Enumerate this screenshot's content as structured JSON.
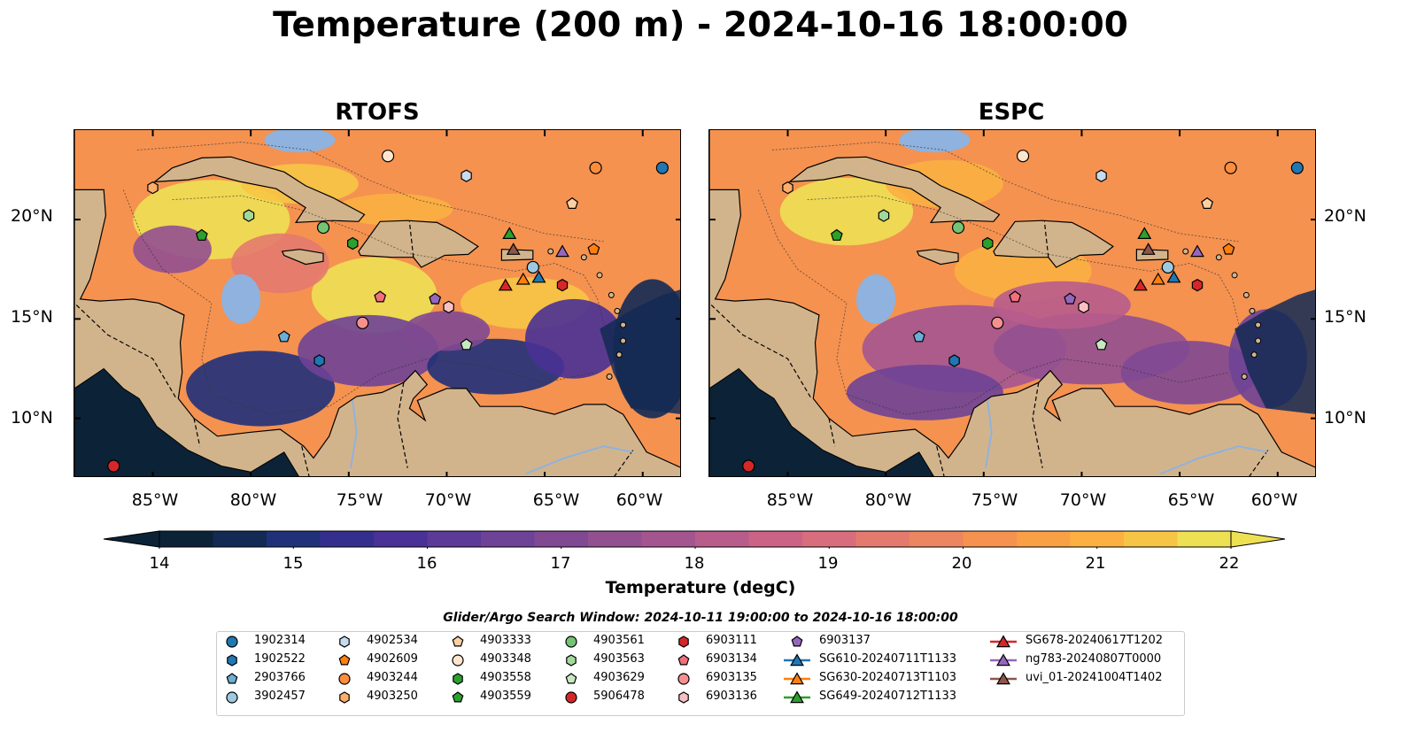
{
  "title": "Temperature (200 m) - 2024-10-16 18:00:00",
  "panels": [
    {
      "title": "RTOFS"
    },
    {
      "title": "ESPC"
    }
  ],
  "axes": {
    "lon_ticks": [
      "85°W",
      "80°W",
      "75°W",
      "70°W",
      "65°W",
      "60°W"
    ],
    "lat_ticks": [
      "20°N",
      "15°N",
      "10°N"
    ]
  },
  "colorbar": {
    "label": "Temperature (degC)",
    "ticks": [
      "14",
      "15",
      "16",
      "17",
      "18",
      "19",
      "20",
      "21",
      "22"
    ],
    "colors": [
      "#0c2236",
      "#132a55",
      "#20317a",
      "#342f8c",
      "#493195",
      "#5c3a97",
      "#6e4296",
      "#804992",
      "#925090",
      "#a45590",
      "#b85c8c",
      "#ca6385",
      "#d86d7d",
      "#e47a6e",
      "#ec8660",
      "#f59250",
      "#f9a046",
      "#fbb041",
      "#f7c545",
      "#eee053"
    ]
  },
  "search_window": "Glider/Argo Search Window: 2024-10-11 19:00:00 to 2024-10-16 18:00:00",
  "chart_data": {
    "type": "heatmap",
    "title": "Temperature (200 m) - 2024-10-16 18:00:00",
    "variable": "Temperature (degC)",
    "color_range": [
      14,
      22
    ],
    "lon_range": [
      -89,
      -58
    ],
    "lat_range": [
      7,
      24.5
    ],
    "panels": [
      "RTOFS",
      "ESPC"
    ],
    "floats": [
      {
        "id": "1902314",
        "marker": "circle",
        "color": "#1f77b4",
        "lon": -59.0,
        "lat": 22.6
      },
      {
        "id": "1902522",
        "marker": "hexagon",
        "color": "#1f77b4",
        "lon": -76.5,
        "lat": 12.9
      },
      {
        "id": "2903766",
        "marker": "pentagon",
        "color": "#6baed6",
        "lon": -78.3,
        "lat": 14.1
      },
      {
        "id": "3902457",
        "marker": "circle",
        "color": "#9ecae1",
        "lon": -65.6,
        "lat": 17.6
      },
      {
        "id": "4902534",
        "marker": "hexagon",
        "color": "#c6dbef",
        "lon": -69.0,
        "lat": 22.2
      },
      {
        "id": "4902609",
        "marker": "pentagon",
        "color": "#ff7f0e",
        "lon": -62.5,
        "lat": 18.5
      },
      {
        "id": "4903244",
        "marker": "circle",
        "color": "#fd8d3c",
        "lon": -62.4,
        "lat": 22.6
      },
      {
        "id": "4903250",
        "marker": "hexagon",
        "color": "#fdae6b",
        "lon": -85.0,
        "lat": 21.6
      },
      {
        "id": "4903333",
        "marker": "pentagon",
        "color": "#fdd0a2",
        "lon": -63.6,
        "lat": 20.8
      },
      {
        "id": "4903348",
        "marker": "circle",
        "color": "#fee6ce",
        "lon": -73.0,
        "lat": 23.2
      },
      {
        "id": "4903558",
        "marker": "hexagon",
        "color": "#2ca02c",
        "lon": -74.8,
        "lat": 18.8
      },
      {
        "id": "4903559",
        "marker": "pentagon",
        "color": "#2ca02c",
        "lon": -82.5,
        "lat": 19.2
      },
      {
        "id": "4903561",
        "marker": "circle",
        "color": "#74c476",
        "lon": -76.3,
        "lat": 19.6
      },
      {
        "id": "4903563",
        "marker": "hexagon",
        "color": "#a1d99b",
        "lon": -80.1,
        "lat": 20.2
      },
      {
        "id": "4903629",
        "marker": "pentagon",
        "color": "#c7e9c0",
        "lon": -69.0,
        "lat": 13.7
      },
      {
        "id": "5906478",
        "marker": "circle",
        "color": "#d62728",
        "lon": -87.0,
        "lat": 7.6
      },
      {
        "id": "6903111",
        "marker": "hexagon",
        "color": "#d62728",
        "lon": -64.1,
        "lat": 16.7
      },
      {
        "id": "6903134",
        "marker": "pentagon",
        "color": "#f0707b",
        "lon": -73.4,
        "lat": 16.1
      },
      {
        "id": "6903135",
        "marker": "circle",
        "color": "#f4918f",
        "lon": -74.3,
        "lat": 14.8
      },
      {
        "id": "6903136",
        "marker": "hexagon",
        "color": "#f9c0c4",
        "lon": -69.9,
        "lat": 15.6
      },
      {
        "id": "6903137",
        "marker": "pentagon",
        "color": "#9467bd",
        "lon": -70.6,
        "lat": 16.0
      }
    ],
    "gliders": [
      {
        "id": "SG610-20240711T1133",
        "color": "#1f77b4",
        "lon": -65.3,
        "lat": 17.1
      },
      {
        "id": "SG630-20240713T1103",
        "color": "#ff7f0e",
        "lon": -66.1,
        "lat": 17.0
      },
      {
        "id": "SG649-20240712T1133",
        "color": "#2ca02c",
        "lon": -66.8,
        "lat": 19.3
      },
      {
        "id": "SG678-20240617T1202",
        "color": "#d62728",
        "lon": -67.0,
        "lat": 16.7
      },
      {
        "id": "ng783-20240807T0000",
        "color": "#9467bd",
        "lon": -64.1,
        "lat": 18.4
      },
      {
        "id": "uvi_01-20241004T1402",
        "color": "#8c564b",
        "lon": -66.6,
        "lat": 18.5
      }
    ]
  }
}
